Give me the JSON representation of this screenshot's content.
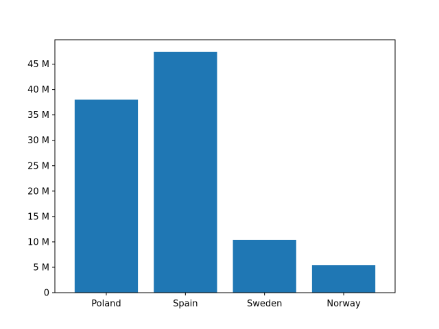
{
  "chart_data": {
    "type": "bar",
    "title": "",
    "xlabel": "",
    "ylabel": "",
    "categories": [
      "Poland",
      "Spain",
      "Sweden",
      "Norway"
    ],
    "values": [
      38000000,
      47400000,
      10400000,
      5400000
    ],
    "ylim": [
      0,
      49800000
    ],
    "yticks": [
      0,
      5000000,
      10000000,
      15000000,
      20000000,
      25000000,
      30000000,
      35000000,
      40000000,
      45000000
    ],
    "ytick_labels": [
      "0",
      "5 M",
      "10 M",
      "15 M",
      "20 M",
      "25 M",
      "30 M",
      "35 M",
      "40 M",
      "45 M"
    ],
    "grid": false,
    "legend": "none",
    "colors": {
      "bar": "#1f77b4",
      "axis": "#000000",
      "background": "#ffffff"
    }
  }
}
